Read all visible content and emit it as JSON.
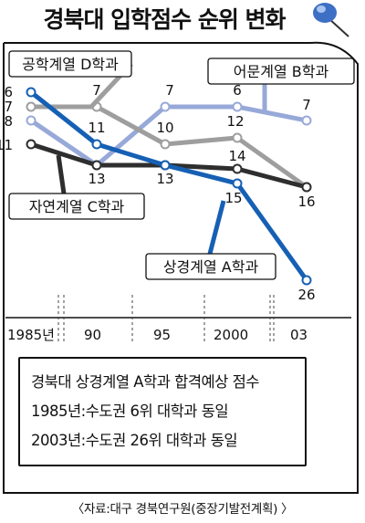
{
  "title": "경북대 입학점수 순위 변화",
  "chart_data": {
    "type": "line",
    "title": "경북대 입학점수 순위 변화",
    "x_tick_labels": [
      "1985년",
      "90",
      "95",
      "2000",
      "03"
    ],
    "x": [
      1985,
      1990,
      1995,
      2000,
      2003
    ],
    "y_axis_inverted": true,
    "legend": "inline-labels",
    "series": [
      {
        "name": "공학계열 D학과",
        "color": "#9e9e9e",
        "values": [
          7,
          7,
          10,
          12,
          16
        ]
      },
      {
        "name": "어문계열 B학과",
        "color": "#97a9d8",
        "values": [
          8,
          13,
          7,
          6,
          7
        ]
      },
      {
        "name": "자연계열 C학과",
        "color": "#2e2e2e",
        "values": [
          11,
          13,
          13,
          14,
          16
        ]
      },
      {
        "name": "상경계열 A학과",
        "color": "#1660b4",
        "values": [
          6,
          11,
          13,
          15,
          26
        ]
      }
    ]
  },
  "note": {
    "lines": [
      "경북대 상경계열 A학과 합격예상 점수",
      "1985년:수도권 6위 대학과 동일",
      "2003년:수도권 26위 대학과 동일"
    ]
  },
  "source": "〈자료:대구 경북연구원(중장기발전계획) 〉",
  "icon": "pushpin-icon"
}
